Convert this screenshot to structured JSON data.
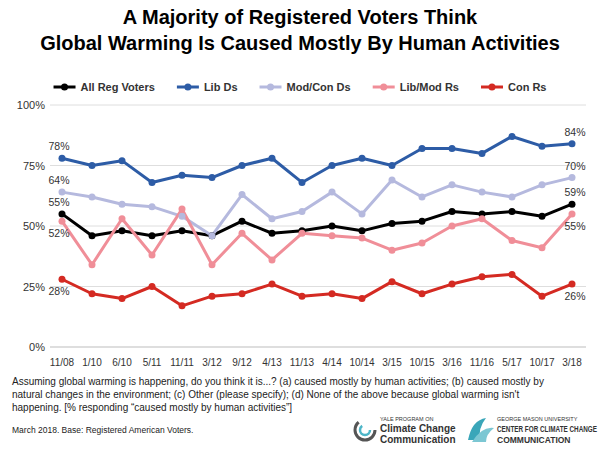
{
  "chart_data": {
    "type": "line",
    "title": [
      "A Majority of Registered Voters Think",
      "Global Warming Is Caused Mostly By Human Activities"
    ],
    "categories": [
      "11/08",
      "1/10",
      "6/10",
      "5/11",
      "11/11",
      "3/12",
      "9/12",
      "4/13",
      "11/13",
      "4/14",
      "10/14",
      "3/15",
      "10/15",
      "3/16",
      "11/16",
      "5/17",
      "10/17",
      "3/18"
    ],
    "series": [
      {
        "name": "All Reg Voters",
        "color": "#000000",
        "marker": "circle",
        "line_style": "solid",
        "values": [
          55,
          46,
          48,
          46,
          48,
          46,
          52,
          47,
          48,
          50,
          48,
          51,
          52,
          56,
          55,
          56,
          54,
          59
        ],
        "value_labels": [
          "55%",
          null,
          null,
          null,
          null,
          null,
          null,
          null,
          null,
          null,
          null,
          null,
          null,
          null,
          null,
          null,
          null,
          "59%"
        ]
      },
      {
        "name": "Lib Ds",
        "color": "#2d5ca6",
        "marker": "circle",
        "line_style": "solid",
        "values": [
          78,
          75,
          77,
          68,
          71,
          70,
          75,
          78,
          68,
          75,
          78,
          75,
          82,
          82,
          80,
          87,
          83,
          84
        ],
        "value_labels": [
          "78%",
          null,
          null,
          null,
          null,
          null,
          null,
          null,
          null,
          null,
          null,
          null,
          null,
          null,
          null,
          null,
          null,
          "84%"
        ]
      },
      {
        "name": "Mod/Con Ds",
        "color": "#b5b9de",
        "marker": "circle",
        "line_style": "solid",
        "values": [
          64,
          62,
          59,
          58,
          54,
          46,
          63,
          53,
          56,
          64,
          55,
          69,
          62,
          67,
          64,
          62,
          67,
          70
        ],
        "value_labels": [
          "64%",
          null,
          null,
          null,
          null,
          null,
          null,
          null,
          null,
          null,
          null,
          null,
          null,
          null,
          null,
          null,
          null,
          "70%"
        ]
      },
      {
        "name": "Lib/Mod Rs",
        "color": "#f08e98",
        "marker": "circle",
        "line_style": "solid",
        "values": [
          52,
          34,
          53,
          38,
          57,
          34,
          47,
          36,
          47,
          46,
          45,
          40,
          43,
          50,
          53,
          44,
          41,
          55
        ],
        "value_labels": [
          "52%",
          null,
          null,
          null,
          null,
          null,
          null,
          null,
          null,
          null,
          null,
          null,
          null,
          null,
          null,
          null,
          null,
          "55%"
        ]
      },
      {
        "name": "Con Rs",
        "color": "#d42a22",
        "marker": "circle",
        "line_style": "solid",
        "values": [
          28,
          22,
          20,
          25,
          17,
          21,
          22,
          26,
          21,
          22,
          20,
          27,
          22,
          26,
          29,
          30,
          21,
          26
        ],
        "value_labels": [
          "28%",
          null,
          null,
          null,
          null,
          null,
          null,
          null,
          null,
          null,
          null,
          null,
          null,
          null,
          null,
          null,
          null,
          "26%"
        ]
      }
    ],
    "ylim": [
      0,
      100
    ],
    "yticks": [
      {
        "value": 0,
        "label": "0%"
      },
      {
        "value": 25,
        "label": "25%"
      },
      {
        "value": 50,
        "label": "50%"
      },
      {
        "value": 75,
        "label": "75%"
      },
      {
        "value": 100,
        "label": "100%"
      }
    ],
    "grid": true,
    "legend": "top",
    "data_labels": true,
    "footnote": [
      "Assuming global warming is happening, do you think it is...? (a) caused mostly by human activities; (b) caused mostly by",
      "natural changes in the environment; (c) Other (please specify); (d) None of the above because global warming isn't",
      "happening. [% responding “caused mostly by human activities”]"
    ],
    "source": "March 2018. Base: Registered American Voters.",
    "logos": [
      {
        "lines": [
          "YALE PROGRAM ON",
          "Climate Change",
          "Communication"
        ]
      },
      {
        "lines": [
          "GEORGE MASON UNIVERSITY",
          "CENTER FOR CLIMATE CHANGE",
          "COMMUNICATION"
        ]
      }
    ]
  }
}
